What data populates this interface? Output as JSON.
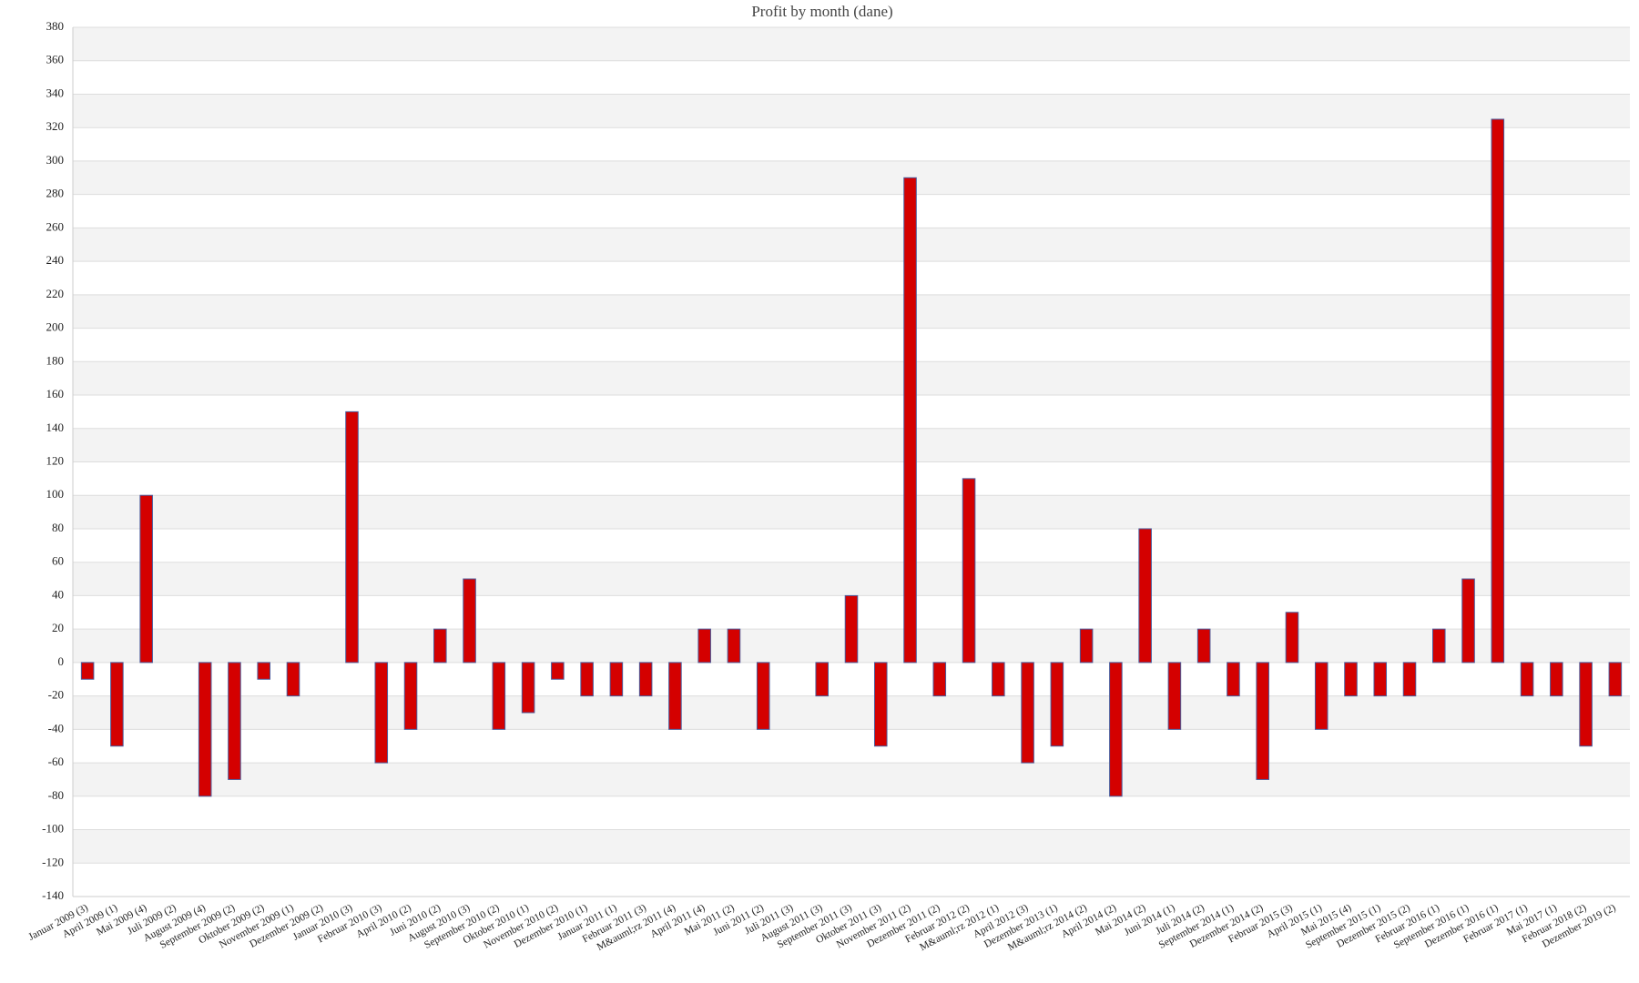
{
  "chart_data": {
    "type": "bar",
    "title": "Profit by month  (dane)",
    "categories": [
      "Januar 2009 (3)",
      "April 2009 (1)",
      "Mai 2009 (4)",
      "Juli 2009 (2)",
      "August 2009 (4)",
      "September 2009 (2)",
      "Oktober 2009 (2)",
      "November 2009 (1)",
      "Dezember 2009 (2)",
      "Januar 2010 (3)",
      "Februar 2010 (3)",
      "April 2010 (2)",
      "Juni 2010 (2)",
      "August 2010 (3)",
      "September 2010 (2)",
      "Oktober 2010 (1)",
      "November 2010 (2)",
      "Dezember 2010 (1)",
      "Januar 2011 (1)",
      "Februar 2011 (3)",
      "M&auml;rz 2011 (4)",
      "April 2011 (4)",
      "Mai 2011 (2)",
      "Juni 2011 (2)",
      "Juli 2011 (3)",
      "August 2011 (3)",
      "September 2011 (3)",
      "Oktober 2011 (3)",
      "November 2011 (2)",
      "Dezember 2011 (2)",
      "Februar 2012 (2)",
      "M&auml;rz 2012 (1)",
      "April 2012 (3)",
      "Dezember 2013 (1)",
      "M&auml;rz 2014 (2)",
      "April 2014 (2)",
      "Mai 2014 (2)",
      "Juni 2014 (1)",
      "Juli 2014 (2)",
      "September 2014 (1)",
      "Dezember 2014 (2)",
      "Februar 2015 (3)",
      "April 2015 (1)",
      "Mai 2015 (4)",
      "September 2015 (1)",
      "Dezember 2015 (2)",
      "Februar 2016 (1)",
      "September 2016 (1)",
      "Dezember 2016 (1)",
      "Februar 2017 (1)",
      "Mai 2017 (1)",
      "Februar 2018 (2)",
      "Dezember 2019 (2)"
    ],
    "values": [
      -10,
      -50,
      100,
      0,
      -80,
      -70,
      -10,
      -20,
      0,
      150,
      -60,
      -40,
      20,
      50,
      -40,
      -30,
      -10,
      -20,
      -20,
      -20,
      -40,
      20,
      20,
      -40,
      0,
      -20,
      40,
      -50,
      290,
      -20,
      110,
      -20,
      -60,
      -50,
      20,
      -80,
      80,
      -40,
      20,
      -20,
      -70,
      30,
      -40,
      -20,
      -20,
      -20,
      20,
      50,
      325,
      -20,
      -20,
      -50,
      -20
    ],
    "color": "#d40000",
    "ylim": [
      -140,
      380
    ],
    "yticks": [
      -140,
      -120,
      -100,
      -80,
      -60,
      -40,
      -20,
      0,
      20,
      40,
      60,
      80,
      100,
      120,
      140,
      160,
      180,
      200,
      220,
      240,
      260,
      280,
      300,
      320,
      340,
      360,
      380
    ],
    "grid": true
  }
}
